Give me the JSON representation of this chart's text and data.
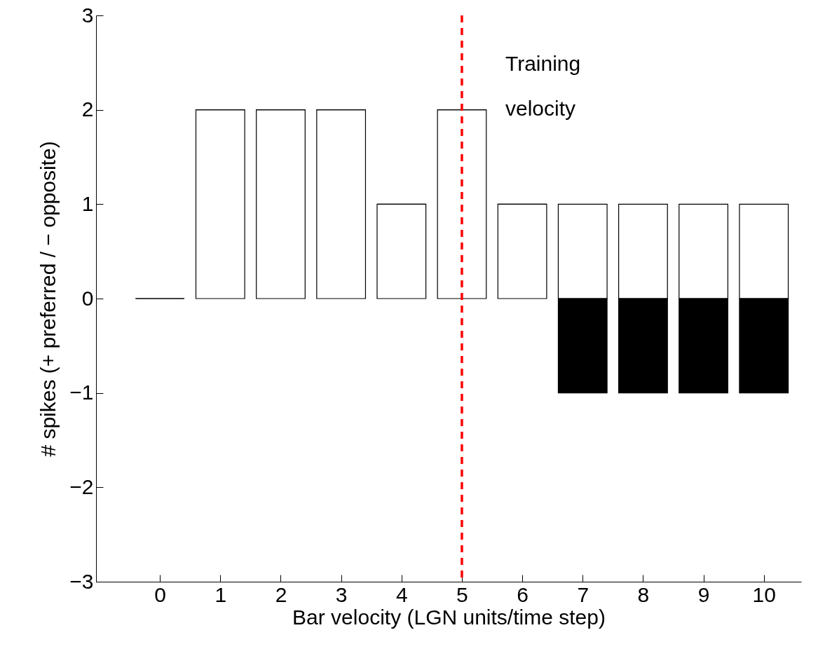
{
  "chart_data": {
    "type": "bar",
    "stacked": true,
    "xlabel": "Bar velocity (LGN units/time step)",
    "ylabel": "# spikes (+ preferred / − opposite)",
    "x": [
      0,
      1,
      2,
      3,
      4,
      5,
      6,
      7,
      8,
      9,
      10
    ],
    "series": [
      {
        "color": "#ffffff",
        "values": [
          0,
          2,
          2,
          2,
          1,
          2,
          1,
          1,
          1,
          1,
          1
        ]
      },
      {
        "color": "#000000",
        "values": [
          0,
          0,
          0,
          0,
          0,
          0,
          0,
          -1,
          -1,
          -1,
          -1
        ]
      }
    ],
    "xlim": [
      -1,
      10.56
    ],
    "xticks": [
      0,
      1,
      2,
      3,
      4,
      5,
      6,
      7,
      8,
      9,
      10
    ],
    "ylim": [
      -3,
      3
    ],
    "yticks": [
      {
        "value": -3,
        "label": "−3"
      },
      {
        "value": -2,
        "label": "−2"
      },
      {
        "value": -1,
        "label": "−1"
      },
      0,
      1,
      2,
      3
    ],
    "ref_lines": [
      {
        "axis": "x",
        "value": 5,
        "label": "Training velocity",
        "color": "#ff0000",
        "line_style": "dashed"
      }
    ],
    "grid": false,
    "legend": false
  }
}
